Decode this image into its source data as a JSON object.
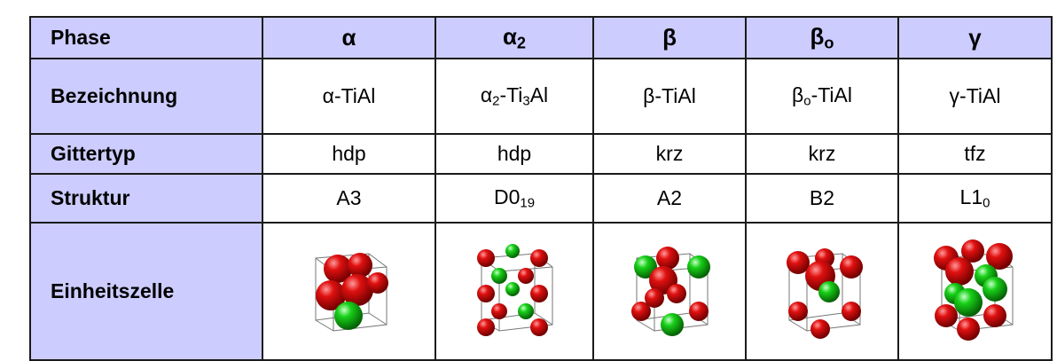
{
  "table": {
    "header": [
      [
        {
          "text": "Phase"
        }
      ],
      [
        {
          "text": "α"
        }
      ],
      [
        {
          "text": "α"
        },
        {
          "text": "2",
          "sub": true
        }
      ],
      [
        {
          "text": "β"
        }
      ],
      [
        {
          "text": "β"
        },
        {
          "text": "o",
          "sub": true
        }
      ],
      [
        {
          "text": "γ"
        }
      ]
    ],
    "rows": [
      {
        "label": [
          {
            "text": "Bezeichnung"
          }
        ],
        "cells": [
          [
            {
              "text": "α-TiAl"
            }
          ],
          [
            {
              "text": "α"
            },
            {
              "text": "2",
              "sub": true
            },
            {
              "text": "-Ti"
            },
            {
              "text": "3",
              "sub": true
            },
            {
              "text": "Al"
            }
          ],
          [
            {
              "text": "β-TiAl"
            }
          ],
          [
            {
              "text": "β"
            },
            {
              "text": "o",
              "sub": true
            },
            {
              "text": "-TiAl"
            }
          ],
          [
            {
              "text": "γ-TiAl"
            }
          ]
        ]
      },
      {
        "label": [
          {
            "text": "Gittertyp"
          }
        ],
        "cells": [
          [
            {
              "text": "hdp"
            }
          ],
          [
            {
              "text": "hdp"
            }
          ],
          [
            {
              "text": "krz"
            }
          ],
          [
            {
              "text": "krz"
            }
          ],
          [
            {
              "text": "tfz"
            }
          ]
        ]
      },
      {
        "label": [
          {
            "text": "Struktur"
          }
        ],
        "cells": [
          [
            {
              "text": "A3"
            }
          ],
          [
            {
              "text": "D0"
            },
            {
              "text": "19",
              "sub": true
            }
          ],
          [
            {
              "text": "A2"
            }
          ],
          [
            {
              "text": "B2"
            }
          ],
          [
            {
              "text": "L1"
            },
            {
              "text": "0",
              "sub": true
            }
          ]
        ]
      },
      {
        "label": [
          {
            "text": "Einheitszelle"
          }
        ]
      }
    ]
  }
}
